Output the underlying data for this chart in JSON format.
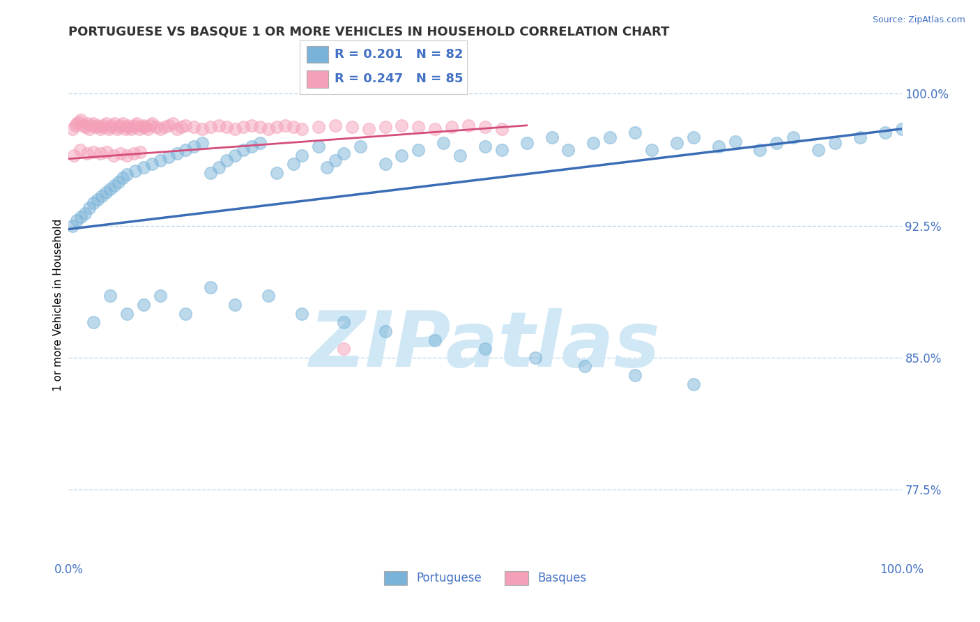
{
  "title": "PORTUGUESE VS BASQUE 1 OR MORE VEHICLES IN HOUSEHOLD CORRELATION CHART",
  "source_text": "Source: ZipAtlas.com",
  "ylabel": "1 or more Vehicles in Household",
  "xlim": [
    0.0,
    1.0
  ],
  "ylim": [
    0.735,
    1.025
  ],
  "yticks": [
    0.775,
    0.85,
    0.925,
    1.0
  ],
  "ytick_labels": [
    "77.5%",
    "85.0%",
    "92.5%",
    "100.0%"
  ],
  "xticks": [
    0.0,
    0.25,
    0.5,
    0.75,
    1.0
  ],
  "xtick_labels": [
    "0.0%",
    "",
    "",
    "",
    "100.0%"
  ],
  "blue_color": "#7ab3d9",
  "pink_color": "#f4a0b8",
  "blue_line_color": "#3a6db5",
  "pink_line_color": "#d44d7a",
  "legend_R_blue": "R = 0.201",
  "legend_N_blue": "N = 82",
  "legend_R_pink": "R = 0.247",
  "legend_N_pink": "N = 85",
  "watermark": "ZIPatlas",
  "watermark_color": "#d0e8f5",
  "background_color": "#ffffff",
  "title_color": "#333333",
  "axis_label_color": "#4472c4",
  "grid_color": "#c0d8ec",
  "legend_text_color": "#4472c4",
  "blue_scatter_x": [
    0.005,
    0.01,
    0.015,
    0.02,
    0.025,
    0.03,
    0.035,
    0.04,
    0.045,
    0.05,
    0.055,
    0.06,
    0.065,
    0.07,
    0.08,
    0.09,
    0.1,
    0.11,
    0.12,
    0.13,
    0.14,
    0.15,
    0.16,
    0.17,
    0.18,
    0.19,
    0.2,
    0.21,
    0.22,
    0.23,
    0.25,
    0.27,
    0.28,
    0.3,
    0.31,
    0.32,
    0.33,
    0.35,
    0.38,
    0.4,
    0.42,
    0.45,
    0.47,
    0.5,
    0.52,
    0.55,
    0.58,
    0.6,
    0.63,
    0.65,
    0.68,
    0.7,
    0.73,
    0.75,
    0.78,
    0.8,
    0.83,
    0.85,
    0.87,
    0.9,
    0.92,
    0.95,
    0.98,
    1.0,
    0.03,
    0.05,
    0.07,
    0.09,
    0.11,
    0.14,
    0.17,
    0.2,
    0.24,
    0.28,
    0.33,
    0.38,
    0.44,
    0.5,
    0.56,
    0.62,
    0.68,
    0.75
  ],
  "blue_scatter_y": [
    0.925,
    0.928,
    0.93,
    0.932,
    0.935,
    0.938,
    0.94,
    0.942,
    0.944,
    0.946,
    0.948,
    0.95,
    0.952,
    0.954,
    0.956,
    0.958,
    0.96,
    0.962,
    0.964,
    0.966,
    0.968,
    0.97,
    0.972,
    0.955,
    0.958,
    0.962,
    0.965,
    0.968,
    0.97,
    0.972,
    0.955,
    0.96,
    0.965,
    0.97,
    0.958,
    0.962,
    0.966,
    0.97,
    0.96,
    0.965,
    0.968,
    0.972,
    0.965,
    0.97,
    0.968,
    0.972,
    0.975,
    0.968,
    0.972,
    0.975,
    0.978,
    0.968,
    0.972,
    0.975,
    0.97,
    0.973,
    0.968,
    0.972,
    0.975,
    0.968,
    0.972,
    0.975,
    0.978,
    0.98,
    0.87,
    0.885,
    0.875,
    0.88,
    0.885,
    0.875,
    0.89,
    0.88,
    0.885,
    0.875,
    0.87,
    0.865,
    0.86,
    0.855,
    0.85,
    0.845,
    0.84,
    0.835
  ],
  "pink_scatter_x": [
    0.005,
    0.008,
    0.01,
    0.012,
    0.015,
    0.018,
    0.02,
    0.022,
    0.025,
    0.028,
    0.03,
    0.032,
    0.035,
    0.038,
    0.04,
    0.042,
    0.045,
    0.048,
    0.05,
    0.052,
    0.055,
    0.058,
    0.06,
    0.062,
    0.065,
    0.068,
    0.07,
    0.072,
    0.075,
    0.078,
    0.08,
    0.082,
    0.085,
    0.088,
    0.09,
    0.092,
    0.095,
    0.098,
    0.1,
    0.105,
    0.11,
    0.115,
    0.12,
    0.125,
    0.13,
    0.135,
    0.14,
    0.15,
    0.16,
    0.17,
    0.18,
    0.19,
    0.2,
    0.21,
    0.22,
    0.23,
    0.24,
    0.25,
    0.26,
    0.27,
    0.28,
    0.3,
    0.32,
    0.34,
    0.36,
    0.38,
    0.4,
    0.42,
    0.44,
    0.46,
    0.48,
    0.5,
    0.52,
    0.006,
    0.014,
    0.022,
    0.03,
    0.038,
    0.046,
    0.054,
    0.062,
    0.07,
    0.078,
    0.086,
    0.33
  ],
  "pink_scatter_y": [
    0.98,
    0.982,
    0.983,
    0.984,
    0.985,
    0.982,
    0.981,
    0.983,
    0.98,
    0.982,
    0.983,
    0.981,
    0.982,
    0.98,
    0.981,
    0.982,
    0.983,
    0.98,
    0.981,
    0.982,
    0.983,
    0.98,
    0.981,
    0.982,
    0.983,
    0.98,
    0.981,
    0.982,
    0.98,
    0.981,
    0.982,
    0.983,
    0.98,
    0.981,
    0.982,
    0.981,
    0.98,
    0.982,
    0.983,
    0.981,
    0.98,
    0.981,
    0.982,
    0.983,
    0.98,
    0.981,
    0.982,
    0.981,
    0.98,
    0.981,
    0.982,
    0.981,
    0.98,
    0.981,
    0.982,
    0.981,
    0.98,
    0.981,
    0.982,
    0.981,
    0.98,
    0.981,
    0.982,
    0.981,
    0.98,
    0.981,
    0.982,
    0.981,
    0.98,
    0.981,
    0.982,
    0.981,
    0.98,
    0.965,
    0.968,
    0.966,
    0.967,
    0.966,
    0.967,
    0.965,
    0.966,
    0.965,
    0.966,
    0.967,
    0.855
  ],
  "blue_trend_x": [
    0.0,
    1.0
  ],
  "blue_trend_y_start": 0.923,
  "blue_trend_y_end": 0.98,
  "pink_trend_x": [
    0.0,
    0.55
  ],
  "pink_trend_y_start": 0.963,
  "pink_trend_y_end": 0.982
}
